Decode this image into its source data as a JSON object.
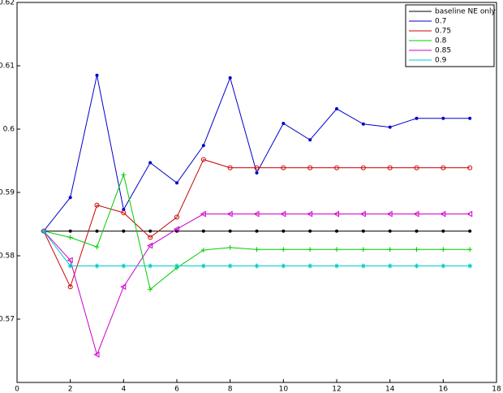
{
  "chart_data": {
    "type": "line",
    "x": [
      1,
      2,
      3,
      4,
      5,
      6,
      7,
      8,
      9,
      10,
      11,
      12,
      13,
      14,
      15,
      16,
      17
    ],
    "series": [
      {
        "name": "baseline NE only",
        "color": "#000000",
        "marker": "dot",
        "values": [
          0.5839,
          0.5839,
          0.5839,
          0.5839,
          0.5839,
          0.5839,
          0.5839,
          0.5839,
          0.5839,
          0.5839,
          0.5839,
          0.5839,
          0.5839,
          0.5839,
          0.5839,
          0.5839,
          0.5839
        ]
      },
      {
        "name": "0.7",
        "color": "#0000cc",
        "marker": "dot",
        "values": [
          0.5839,
          0.5892,
          0.6085,
          0.5873,
          0.5947,
          0.5915,
          0.5974,
          0.6081,
          0.5931,
          0.6009,
          0.5983,
          0.6032,
          0.6008,
          0.6003,
          0.6017,
          0.6017,
          0.6017
        ]
      },
      {
        "name": "0.75",
        "color": "#cc0000",
        "marker": "circle",
        "values": [
          0.5839,
          0.5751,
          0.588,
          0.5868,
          0.5829,
          0.5861,
          0.5952,
          0.5939,
          0.5939,
          0.5939,
          0.5939,
          0.5939,
          0.5939,
          0.5939,
          0.5939,
          0.5939,
          0.5939
        ]
      },
      {
        "name": "0.8",
        "color": "#00cc00",
        "marker": "plus",
        "values": [
          0.5839,
          0.5829,
          0.5814,
          0.5928,
          0.5747,
          0.5781,
          0.5809,
          0.5813,
          0.581,
          0.581,
          0.581,
          0.581,
          0.581,
          0.581,
          0.581,
          0.581,
          0.581
        ]
      },
      {
        "name": "0.85",
        "color": "#cc00cc",
        "marker": "triangle",
        "values": [
          0.5839,
          0.5793,
          0.5644,
          0.5751,
          0.5816,
          0.5842,
          0.5866,
          0.5866,
          0.5866,
          0.5866,
          0.5866,
          0.5866,
          0.5866,
          0.5866,
          0.5866,
          0.5866,
          0.5866
        ]
      },
      {
        "name": "0.9",
        "color": "#00cccc",
        "marker": "star",
        "values": [
          0.5839,
          0.5784,
          0.5784,
          0.5784,
          0.5784,
          0.5784,
          0.5784,
          0.5784,
          0.5784,
          0.5784,
          0.5784,
          0.5784,
          0.5784,
          0.5784,
          0.5784,
          0.5784,
          0.5784
        ]
      }
    ],
    "xlim": [
      0,
      18
    ],
    "xticks": [
      0,
      2,
      4,
      6,
      8,
      10,
      12,
      14,
      16,
      18
    ],
    "ylim": [
      0.56,
      0.62
    ],
    "yticks": [
      0.57,
      0.58,
      0.59,
      0.6,
      0.61,
      0.62
    ],
    "legend": "top-right"
  }
}
